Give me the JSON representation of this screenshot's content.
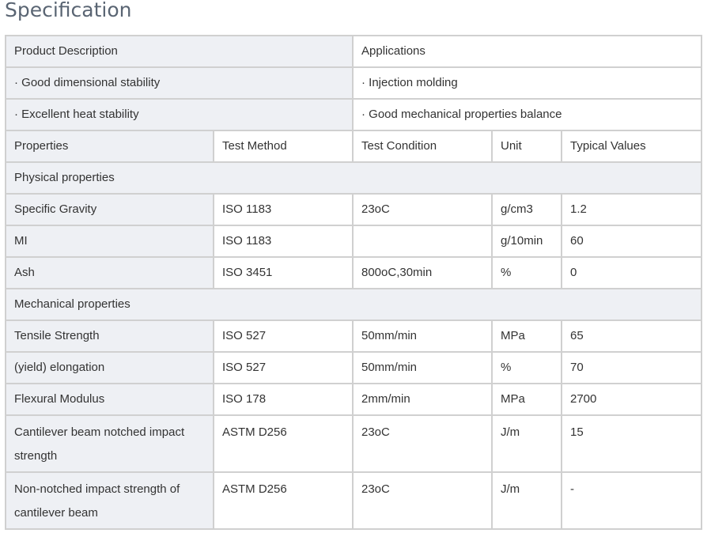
{
  "title": "Specification",
  "intro": {
    "left": [
      "Product Description",
      "· Good dimensional stability",
      "· Excellent heat stability"
    ],
    "right": [
      "Applications",
      "· Injection molding",
      "· Good mechanical properties balance"
    ]
  },
  "headers": [
    "Properties",
    "Test Method",
    "Test Condition",
    "Unit",
    "Typical Values"
  ],
  "sections": [
    {
      "name": "Physical properties",
      "rows": [
        [
          "Specific Gravity",
          "ISO 1183",
          "23oC",
          "g/cm3",
          "1.2"
        ],
        [
          "MI",
          "ISO 1183",
          "",
          "g/10min",
          "60"
        ],
        [
          "Ash",
          "ISO 3451",
          "800oC,30min",
          "%",
          "0"
        ]
      ]
    },
    {
      "name": "Mechanical properties",
      "rows": [
        [
          "Tensile Strength",
          "ISO 527",
          "50mm/min",
          "MPa",
          "65"
        ],
        [
          "(yield) elongation",
          "ISO 527",
          "50mm/min",
          "%",
          "70"
        ],
        [
          "Flexural Modulus",
          "ISO 178",
          "2mm/min",
          "MPa",
          "2700"
        ],
        [
          "Cantilever beam notched impact strength",
          "ASTM D256",
          "23oC",
          "J/m",
          "15"
        ],
        [
          "Non-notched impact strength of cantilever beam",
          "ASTM D256",
          "23oC",
          "J/m",
          "-"
        ]
      ]
    }
  ]
}
